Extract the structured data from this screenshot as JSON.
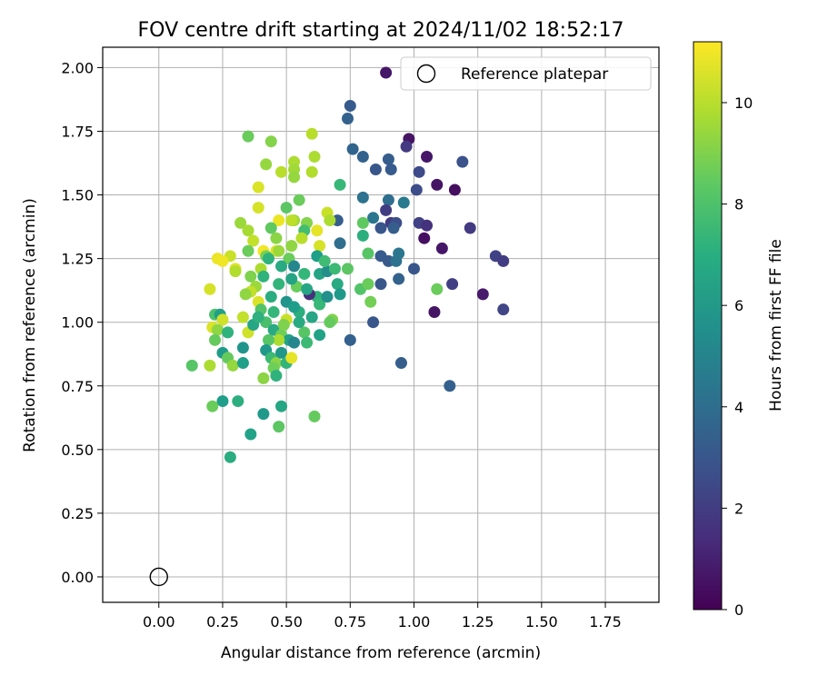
{
  "chart_data": {
    "type": "scatter",
    "title": "FOV centre drift starting at 2024/11/02 18:52:17",
    "xlabel": "Angular distance from reference (arcmin)",
    "ylabel": "Rotation from reference (arcmin)",
    "xlim": [
      -0.22,
      1.96
    ],
    "ylim": [
      -0.1,
      2.08
    ],
    "xticks": [
      0.0,
      0.25,
      0.5,
      0.75,
      1.0,
      1.25,
      1.5,
      1.75
    ],
    "xtick_labels": [
      "0.00",
      "0.25",
      "0.50",
      "0.75",
      "1.00",
      "1.25",
      "1.50",
      "1.75"
    ],
    "yticks": [
      0.0,
      0.25,
      0.5,
      0.75,
      1.0,
      1.25,
      1.5,
      1.75,
      2.0
    ],
    "ytick_labels": [
      "0.00",
      "0.25",
      "0.50",
      "0.75",
      "1.00",
      "1.25",
      "1.50",
      "1.75",
      "2.00"
    ],
    "grid": true,
    "legend": {
      "placement": "top-right",
      "entries": [
        "Reference platepar"
      ]
    },
    "reference_point": {
      "x": 0.0,
      "y": 0.0,
      "label": "Reference platepar"
    },
    "colorbar": {
      "label": "Hours from first FF file",
      "colormap": "viridis",
      "range": [
        0,
        11.2
      ],
      "ticks": [
        0,
        2,
        4,
        6,
        8,
        10
      ],
      "tick_labels": [
        "0",
        "2",
        "4",
        "6",
        "8",
        "10"
      ]
    },
    "series": [
      {
        "columns": [
          "x",
          "y",
          "hours"
        ],
        "points": [
          [
            0.89,
            1.98,
            0.7
          ],
          [
            0.75,
            1.85,
            3.2
          ],
          [
            0.74,
            1.8,
            3.5
          ],
          [
            0.76,
            1.68,
            3.6
          ],
          [
            0.8,
            1.65,
            3.5
          ],
          [
            0.98,
            1.72,
            0.6
          ],
          [
            0.97,
            1.69,
            1.9
          ],
          [
            1.05,
            1.65,
            0.7
          ],
          [
            1.19,
            1.63,
            2.8
          ],
          [
            0.9,
            1.64,
            3.3
          ],
          [
            0.91,
            1.6,
            3.2
          ],
          [
            0.85,
            1.6,
            3.0
          ],
          [
            1.02,
            1.59,
            2.5
          ],
          [
            1.09,
            1.54,
            0.6
          ],
          [
            1.16,
            1.52,
            0.4
          ],
          [
            1.01,
            1.52,
            2.6
          ],
          [
            0.8,
            1.49,
            4.2
          ],
          [
            0.9,
            1.48,
            4.0
          ],
          [
            0.89,
            1.44,
            2.0
          ],
          [
            0.96,
            1.47,
            4.6
          ],
          [
            0.91,
            1.39,
            2.0
          ],
          [
            0.93,
            1.39,
            2.7
          ],
          [
            1.02,
            1.39,
            2.2
          ],
          [
            1.05,
            1.38,
            1.6
          ],
          [
            1.22,
            1.37,
            1.9
          ],
          [
            0.87,
            1.37,
            3.0
          ],
          [
            0.92,
            1.37,
            3.3
          ],
          [
            0.84,
            1.41,
            4.4
          ],
          [
            0.7,
            1.4,
            3.3
          ],
          [
            0.71,
            1.31,
            4.0
          ],
          [
            1.04,
            1.33,
            0.4
          ],
          [
            1.11,
            1.29,
            0.7
          ],
          [
            0.87,
            1.26,
            3.2
          ],
          [
            0.9,
            1.24,
            3.1
          ],
          [
            0.93,
            1.24,
            4.2
          ],
          [
            0.94,
            1.27,
            4.4
          ],
          [
            1.0,
            1.21,
            3.0
          ],
          [
            0.94,
            1.17,
            3.5
          ],
          [
            0.87,
            1.15,
            3.0
          ],
          [
            1.15,
            1.15,
            2.1
          ],
          [
            1.27,
            1.11,
            0.8
          ],
          [
            1.32,
            1.26,
            2.2
          ],
          [
            1.35,
            1.24,
            2.0
          ],
          [
            1.35,
            1.05,
            2.3
          ],
          [
            1.08,
            1.04,
            0.6
          ],
          [
            1.09,
            1.13,
            8.6
          ],
          [
            0.84,
            1.0,
            3.0
          ],
          [
            0.75,
            0.93,
            3.4
          ],
          [
            0.95,
            0.84,
            3.3
          ],
          [
            1.14,
            0.75,
            3.4
          ],
          [
            0.71,
            1.54,
            7.5
          ],
          [
            0.8,
            1.39,
            8.4
          ],
          [
            0.8,
            1.34,
            7.0
          ],
          [
            0.82,
            1.27,
            8.2
          ],
          [
            0.79,
            1.13,
            8.1
          ],
          [
            0.82,
            1.15,
            8.6
          ],
          [
            0.83,
            1.08,
            8.8
          ],
          [
            0.74,
            1.21,
            8.3
          ],
          [
            0.68,
            1.01,
            9.0
          ],
          [
            0.67,
            1.0,
            8.5
          ],
          [
            0.6,
            1.74,
            10.0
          ],
          [
            0.35,
            1.73,
            8.6
          ],
          [
            0.44,
            1.71,
            9.1
          ],
          [
            0.61,
            1.65,
            9.8
          ],
          [
            0.42,
            1.62,
            9.4
          ],
          [
            0.53,
            1.63,
            9.8
          ],
          [
            0.48,
            1.59,
            10.0
          ],
          [
            0.53,
            1.6,
            9.6
          ],
          [
            0.6,
            1.59,
            9.9
          ],
          [
            0.53,
            1.57,
            9.4
          ],
          [
            0.39,
            1.53,
            10.6
          ],
          [
            0.55,
            1.48,
            8.6
          ],
          [
            0.39,
            1.45,
            10.5
          ],
          [
            0.5,
            1.45,
            8.3
          ],
          [
            0.53,
            1.4,
            9.5
          ],
          [
            0.66,
            1.43,
            10.3
          ],
          [
            0.47,
            1.4,
            10.9
          ],
          [
            0.52,
            1.4,
            10.1
          ],
          [
            0.67,
            1.4,
            9.8
          ],
          [
            0.32,
            1.39,
            9.5
          ],
          [
            0.44,
            1.37,
            8.4
          ],
          [
            0.58,
            1.39,
            9.1
          ],
          [
            0.57,
            1.36,
            7.8
          ],
          [
            0.62,
            1.36,
            10.8
          ],
          [
            0.35,
            1.36,
            9.7
          ],
          [
            0.56,
            1.33,
            10.0
          ],
          [
            0.46,
            1.33,
            9.2
          ],
          [
            0.63,
            1.3,
            10.5
          ],
          [
            0.52,
            1.3,
            9.3
          ],
          [
            0.37,
            1.32,
            10.2
          ],
          [
            0.41,
            1.28,
            11.0
          ],
          [
            0.46,
            1.28,
            10.6
          ],
          [
            0.47,
            1.28,
            9.5
          ],
          [
            0.42,
            1.26,
            8.9
          ],
          [
            0.35,
            1.28,
            8.6
          ],
          [
            0.28,
            1.26,
            10.3
          ],
          [
            0.23,
            1.25,
            10.9
          ],
          [
            0.25,
            1.24,
            11.0
          ],
          [
            0.43,
            1.25,
            7.2
          ],
          [
            0.51,
            1.25,
            8.6
          ],
          [
            0.53,
            1.22,
            5.2
          ],
          [
            0.48,
            1.22,
            6.8
          ],
          [
            0.4,
            1.21,
            9.8
          ],
          [
            0.3,
            1.21,
            10.7
          ],
          [
            0.3,
            1.2,
            9.9
          ],
          [
            0.36,
            1.18,
            9.0
          ],
          [
            0.41,
            1.18,
            7.2
          ],
          [
            0.57,
            1.19,
            8.0
          ],
          [
            0.63,
            1.19,
            6.5
          ],
          [
            0.66,
            1.2,
            5.5
          ],
          [
            0.69,
            1.21,
            7.6
          ],
          [
            0.7,
            1.15,
            6.8
          ],
          [
            0.62,
            1.1,
            7.2
          ],
          [
            0.59,
            1.11,
            1.5
          ],
          [
            0.54,
            1.14,
            8.6
          ],
          [
            0.52,
            1.17,
            6.5
          ],
          [
            0.47,
            1.15,
            7.3
          ],
          [
            0.38,
            1.14,
            9.5
          ],
          [
            0.36,
            1.12,
            10.2
          ],
          [
            0.34,
            1.11,
            9.3
          ],
          [
            0.39,
            1.08,
            10.6
          ],
          [
            0.4,
            1.05,
            8.1
          ],
          [
            0.45,
            1.04,
            7.4
          ],
          [
            0.5,
            1.01,
            10.3
          ],
          [
            0.55,
            1.04,
            7.0
          ],
          [
            0.6,
            1.02,
            6.6
          ],
          [
            0.63,
            1.07,
            7.5
          ],
          [
            0.66,
            1.1,
            5.6
          ],
          [
            0.71,
            1.11,
            6.0
          ],
          [
            0.2,
            1.13,
            10.5
          ],
          [
            0.22,
            1.03,
            8.0
          ],
          [
            0.24,
            1.03,
            6.3
          ],
          [
            0.25,
            1.01,
            10.4
          ],
          [
            0.21,
            0.98,
            10.6
          ],
          [
            0.23,
            0.97,
            9.3
          ],
          [
            0.22,
            0.93,
            8.5
          ],
          [
            0.27,
            0.96,
            7.2
          ],
          [
            0.33,
            1.02,
            10.2
          ],
          [
            0.35,
            0.96,
            10.4
          ],
          [
            0.37,
            0.99,
            6.6
          ],
          [
            0.42,
            1.0,
            7.9
          ],
          [
            0.45,
            0.97,
            6.8
          ],
          [
            0.48,
            0.95,
            8.7
          ],
          [
            0.49,
            0.99,
            9.0
          ],
          [
            0.51,
            0.93,
            6.4
          ],
          [
            0.47,
            0.93,
            9.8
          ],
          [
            0.43,
            0.93,
            8.2
          ],
          [
            0.53,
            0.92,
            5.2
          ],
          [
            0.57,
            0.96,
            8.2
          ],
          [
            0.58,
            0.92,
            7.6
          ],
          [
            0.63,
            0.95,
            6.4
          ],
          [
            0.25,
            0.88,
            6.1
          ],
          [
            0.33,
            0.9,
            5.8
          ],
          [
            0.27,
            0.86,
            8.5
          ],
          [
            0.29,
            0.83,
            9.4
          ],
          [
            0.33,
            0.84,
            6.3
          ],
          [
            0.42,
            0.89,
            6.0
          ],
          [
            0.44,
            0.86,
            7.6
          ],
          [
            0.46,
            0.84,
            9.2
          ],
          [
            0.45,
            0.82,
            8.7
          ],
          [
            0.48,
            0.88,
            5.9
          ],
          [
            0.5,
            0.84,
            7.3
          ],
          [
            0.52,
            0.86,
            10.8
          ],
          [
            0.13,
            0.83,
            8.2
          ],
          [
            0.2,
            0.83,
            9.8
          ],
          [
            0.41,
            0.78,
            9.2
          ],
          [
            0.46,
            0.79,
            7.2
          ],
          [
            0.25,
            0.69,
            6.2
          ],
          [
            0.31,
            0.69,
            7.0
          ],
          [
            0.21,
            0.67,
            8.6
          ],
          [
            0.48,
            0.67,
            6.6
          ],
          [
            0.41,
            0.64,
            6.0
          ],
          [
            0.36,
            0.56,
            6.4
          ],
          [
            0.47,
            0.59,
            8.3
          ],
          [
            0.61,
            0.63,
            8.5
          ],
          [
            0.28,
            0.47,
            6.9
          ],
          [
            0.62,
            1.26,
            6.2
          ],
          [
            0.65,
            1.24,
            7.7
          ],
          [
            0.58,
            1.13,
            6.6
          ],
          [
            0.44,
            1.1,
            6.9
          ],
          [
            0.5,
            1.08,
            5.8
          ],
          [
            0.53,
            1.06,
            6.2
          ],
          [
            0.39,
            1.02,
            7.1
          ],
          [
            0.55,
            1.0,
            6.8
          ],
          [
            0.57,
            1.19,
            7.4
          ]
        ]
      }
    ]
  }
}
